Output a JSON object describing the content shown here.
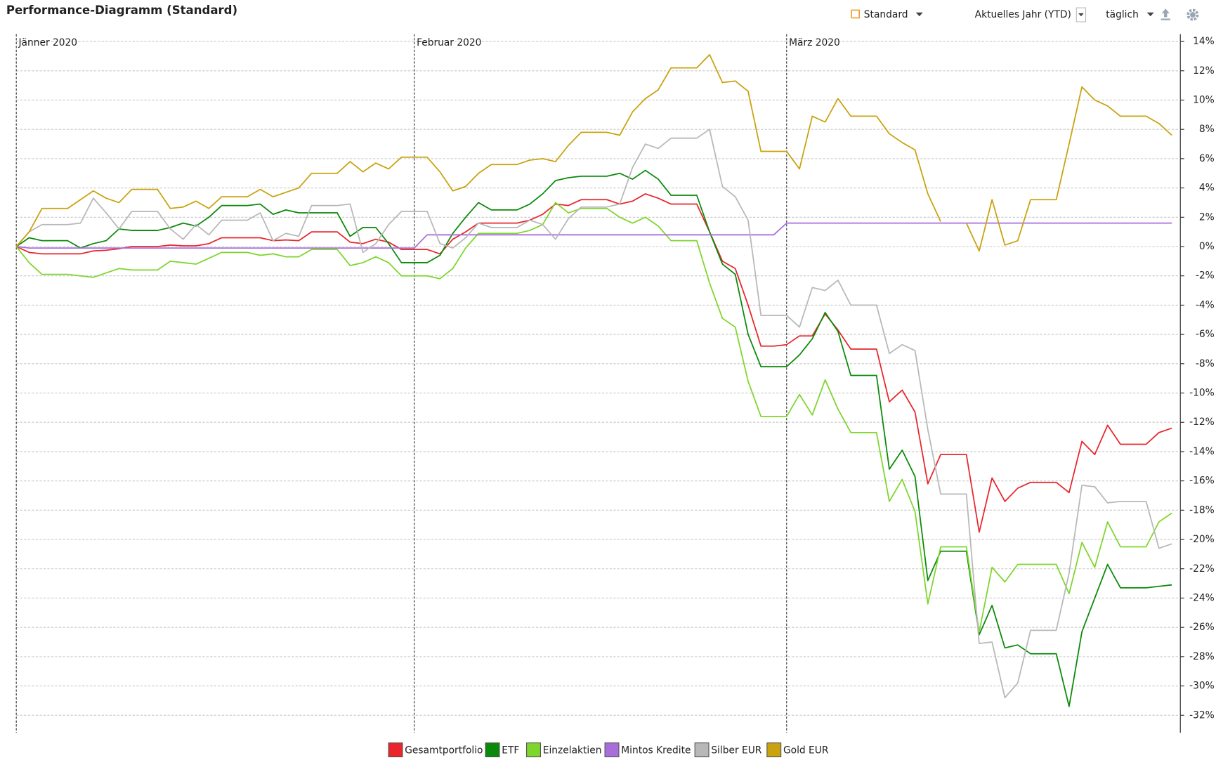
{
  "chart_data": {
    "type": "line",
    "title": "Performance-Diagramm (Standard)",
    "categories": [
      "Jänner 2020",
      null,
      null,
      null,
      null,
      null,
      null,
      null,
      null,
      null,
      null,
      null,
      null,
      null,
      null,
      null,
      null,
      null,
      null,
      null,
      null,
      null,
      null,
      null,
      null,
      null,
      null,
      null,
      null,
      null,
      null,
      "Februar 2020",
      null,
      null,
      null,
      null,
      null,
      null,
      null,
      null,
      null,
      null,
      null,
      null,
      null,
      null,
      null,
      null,
      null,
      null,
      null,
      null,
      null,
      null,
      null,
      null,
      null,
      null,
      null,
      null,
      "März 2020",
      null,
      null,
      null,
      null,
      null,
      null,
      null,
      null,
      null,
      null,
      null,
      null,
      null,
      null,
      null,
      null,
      null,
      null,
      null,
      null,
      null,
      null,
      null,
      null,
      null,
      null,
      null,
      null,
      null,
      null
    ],
    "series": [
      {
        "name": "Gesamtportfolio",
        "color": "#e8262b",
        "values": [
          0,
          -0.4,
          -0.5,
          -0.5,
          -0.5,
          -0.5,
          -0.3,
          -0.25,
          -0.15,
          0,
          0,
          0,
          0.1,
          0.05,
          0.05,
          0.2,
          0.6,
          0.6,
          0.6,
          0.6,
          0.4,
          0.45,
          0.4,
          1.0,
          1.0,
          1.0,
          0.3,
          0.2,
          0.5,
          0.3,
          -0.2,
          -0.2,
          -0.2,
          -0.5,
          0.5,
          1.0,
          1.6,
          1.6,
          1.6,
          1.6,
          1.8,
          2.2,
          2.9,
          2.8,
          3.2,
          3.2,
          3.2,
          2.9,
          3.1,
          3.6,
          3.3,
          2.9,
          2.9,
          2.9,
          1.0,
          -1.0,
          -1.5,
          -4.0,
          -6.8,
          -6.8,
          -6.7,
          -6.1,
          -6.1,
          -4.6,
          -5.7,
          -7.0,
          -7.0,
          -7.0,
          -10.6,
          -9.8,
          -11.3,
          -16.2,
          -14.2,
          -14.2,
          -14.2,
          -19.5,
          -15.8,
          -17.4,
          -16.5,
          -16.1,
          -16.1,
          -16.1,
          -16.8,
          -13.3,
          -14.2,
          -12.2,
          -13.5,
          -13.5,
          -13.5,
          -12.7,
          -12.4
        ]
      },
      {
        "name": "ETF",
        "color": "#0a8a0a",
        "values": [
          0,
          0.6,
          0.4,
          0.4,
          0.4,
          -0.1,
          0.2,
          0.4,
          1.2,
          1.1,
          1.1,
          1.1,
          1.3,
          1.6,
          1.4,
          2.0,
          2.8,
          2.8,
          2.8,
          2.9,
          2.2,
          2.5,
          2.3,
          2.3,
          2.3,
          2.3,
          0.7,
          1.3,
          1.3,
          0.2,
          -1.1,
          -1.1,
          -1.1,
          -0.6,
          0.9,
          2.0,
          3.0,
          2.5,
          2.5,
          2.5,
          2.9,
          3.6,
          4.5,
          4.7,
          4.8,
          4.8,
          4.8,
          5.0,
          4.6,
          5.2,
          4.6,
          3.5,
          3.5,
          3.5,
          1.0,
          -1.2,
          -1.9,
          -6.0,
          -8.2,
          -8.2,
          -8.2,
          -7.4,
          -6.3,
          -4.5,
          -5.8,
          -8.8,
          -8.8,
          -8.8,
          -15.2,
          -13.9,
          -15.7,
          -22.8,
          -20.8,
          -20.8,
          -20.8,
          -26.5,
          -24.5,
          -27.4,
          -27.2,
          -27.8,
          -27.8,
          -27.8,
          -31.4,
          -26.3,
          -24.0,
          -21.7,
          -23.3,
          -23.3,
          -23.3,
          -23.2,
          -23.1
        ]
      },
      {
        "name": "Einzelaktien",
        "color": "#7ed62c",
        "values": [
          0,
          -1.1,
          -1.9,
          -1.9,
          -1.9,
          -2.0,
          -2.1,
          -1.8,
          -1.5,
          -1.6,
          -1.6,
          -1.6,
          -1.0,
          -1.1,
          -1.2,
          -0.8,
          -0.4,
          -0.4,
          -0.4,
          -0.6,
          -0.5,
          -0.7,
          -0.7,
          -0.2,
          -0.2,
          -0.2,
          -1.3,
          -1.1,
          -0.7,
          -1.1,
          -2.0,
          -2.0,
          -2.0,
          -2.2,
          -1.5,
          -0.1,
          0.9,
          0.9,
          0.9,
          0.9,
          1.1,
          1.5,
          3.0,
          2.3,
          2.6,
          2.6,
          2.6,
          2.0,
          1.6,
          2.0,
          1.4,
          0.4,
          0.4,
          0.4,
          -2.5,
          -4.9,
          -5.5,
          -9.2,
          -11.6,
          -11.6,
          -11.6,
          -10.1,
          -11.5,
          -9.1,
          -11.1,
          -12.7,
          -12.7,
          -12.7,
          -17.4,
          -15.9,
          -18.1,
          -24.4,
          -20.5,
          -20.5,
          -20.5,
          -26.3,
          -21.9,
          -22.9,
          -21.7,
          -21.7,
          -21.7,
          -21.7,
          -23.7,
          -20.2,
          -21.9,
          -18.8,
          -20.5,
          -20.5,
          -20.5,
          -18.8,
          -18.2
        ]
      },
      {
        "name": "Mintos Kredite",
        "color": "#a86fdc",
        "values": [
          0,
          -0.1,
          -0.1,
          -0.1,
          -0.1,
          -0.1,
          -0.1,
          -0.1,
          -0.1,
          -0.1,
          -0.1,
          -0.1,
          -0.1,
          -0.1,
          -0.1,
          -0.1,
          -0.1,
          -0.1,
          -0.1,
          -0.1,
          -0.1,
          -0.1,
          -0.1,
          -0.1,
          -0.1,
          -0.1,
          -0.1,
          -0.1,
          -0.1,
          -0.1,
          -0.1,
          -0.1,
          0.8,
          0.8,
          0.8,
          0.8,
          0.8,
          0.8,
          0.8,
          0.8,
          0.8,
          0.8,
          0.8,
          0.8,
          0.8,
          0.8,
          0.8,
          0.8,
          0.8,
          0.8,
          0.8,
          0.8,
          0.8,
          0.8,
          0.8,
          0.8,
          0.8,
          0.8,
          0.8,
          0.8,
          1.6,
          1.6,
          1.6,
          1.6,
          1.6,
          1.6,
          1.6,
          1.6,
          1.6,
          1.6,
          1.6,
          1.6,
          1.6,
          1.6,
          1.6,
          1.6,
          1.6,
          1.6,
          1.6,
          1.6,
          1.6,
          1.6,
          1.6,
          1.6,
          1.6,
          1.6,
          1.6,
          1.6,
          1.6,
          1.6,
          1.6
        ]
      },
      {
        "name": "Silber EUR",
        "color": "#b8b8b8",
        "values": [
          0,
          1.0,
          1.5,
          1.5,
          1.5,
          1.6,
          3.3,
          2.3,
          1.2,
          2.4,
          2.4,
          2.4,
          1.2,
          0.5,
          1.5,
          0.8,
          1.8,
          1.8,
          1.8,
          2.3,
          0.4,
          0.9,
          0.7,
          2.8,
          2.8,
          2.8,
          2.9,
          -0.4,
          0.2,
          1.5,
          2.4,
          2.4,
          2.4,
          0.2,
          -0.1,
          0.6,
          1.6,
          1.3,
          1.3,
          1.3,
          1.8,
          1.5,
          0.5,
          1.9,
          2.7,
          2.7,
          2.7,
          2.9,
          5.4,
          7.0,
          6.7,
          7.4,
          7.4,
          7.4,
          8.0,
          4.1,
          3.4,
          1.8,
          -4.7,
          -4.7,
          -4.7,
          -5.5,
          -2.8,
          -3.0,
          -2.3,
          -4.0,
          -4.0,
          -4.0,
          -7.3,
          -6.7,
          -7.1,
          -12.5,
          -16.9,
          -16.9,
          -16.9,
          -27.1,
          -27.0,
          -30.8,
          -29.8,
          -26.2,
          -26.2,
          -26.2,
          -22.3,
          -16.3,
          -16.4,
          -17.5,
          -17.4,
          -17.4,
          -17.4,
          -20.6,
          -20.3
        ]
      },
      {
        "name": "Gold EUR",
        "color": "#c9a20e",
        "values": [
          0,
          1.0,
          2.6,
          2.6,
          2.6,
          3.2,
          3.8,
          3.3,
          3.0,
          3.9,
          3.9,
          3.9,
          2.6,
          2.7,
          3.1,
          2.6,
          3.4,
          3.4,
          3.4,
          3.9,
          3.4,
          3.7,
          4.0,
          5.0,
          5.0,
          5.0,
          5.8,
          5.1,
          5.7,
          5.3,
          6.1,
          6.1,
          6.1,
          5.1,
          3.8,
          4.1,
          5.0,
          5.6,
          5.6,
          5.6,
          5.9,
          6.0,
          5.8,
          6.9,
          7.8,
          7.8,
          7.8,
          7.6,
          9.2,
          10.1,
          10.7,
          12.2,
          12.2,
          12.2,
          13.1,
          11.2,
          11.3,
          10.6,
          6.5,
          6.5,
          6.5,
          5.3,
          8.9,
          8.5,
          10.1,
          8.9,
          8.9,
          8.9,
          7.7,
          7.1,
          6.6,
          3.6,
          1.7,
          null,
          1.6,
          -0.3,
          3.2,
          0.1,
          0.4,
          3.2,
          3.2,
          3.2,
          7.0,
          10.9,
          10.0,
          9.6,
          8.9,
          8.9,
          8.9,
          8.4,
          7.6
        ]
      }
    ],
    "ylim": [
      -33.2,
      14.5
    ],
    "yticks": [
      {
        "value": 14,
        "label": "14%"
      },
      {
        "value": 12,
        "label": "12%"
      },
      {
        "value": 10,
        "label": "10%"
      },
      {
        "value": 8,
        "label": "8%"
      },
      {
        "value": 6,
        "label": "6%"
      },
      {
        "value": 4,
        "label": "4%"
      },
      {
        "value": 2,
        "label": "2%"
      },
      {
        "value": 0,
        "label": "0%"
      },
      {
        "value": -2,
        "label": "-2%"
      },
      {
        "value": -4,
        "label": "-4%"
      },
      {
        "value": -6,
        "label": "-6%"
      },
      {
        "value": -8,
        "label": "-8%"
      },
      {
        "value": -10,
        "label": "-10%"
      },
      {
        "value": -12,
        "label": "-12%"
      },
      {
        "value": -14,
        "label": "-14%"
      },
      {
        "value": -16,
        "label": "-16%"
      },
      {
        "value": -18,
        "label": "-18%"
      },
      {
        "value": -20,
        "label": "-20%"
      },
      {
        "value": -22,
        "label": "-22%"
      },
      {
        "value": -24,
        "label": "-24%"
      },
      {
        "value": -26,
        "label": "-26%"
      },
      {
        "value": -28,
        "label": "-28%"
      },
      {
        "value": -30,
        "label": "-30%"
      },
      {
        "value": -32,
        "label": "-32%"
      }
    ],
    "grid": true,
    "legend": "bottom"
  },
  "toolbar": {
    "view": "Standard",
    "period": "Aktuelles Jahr (YTD)",
    "interval": "täglich"
  }
}
